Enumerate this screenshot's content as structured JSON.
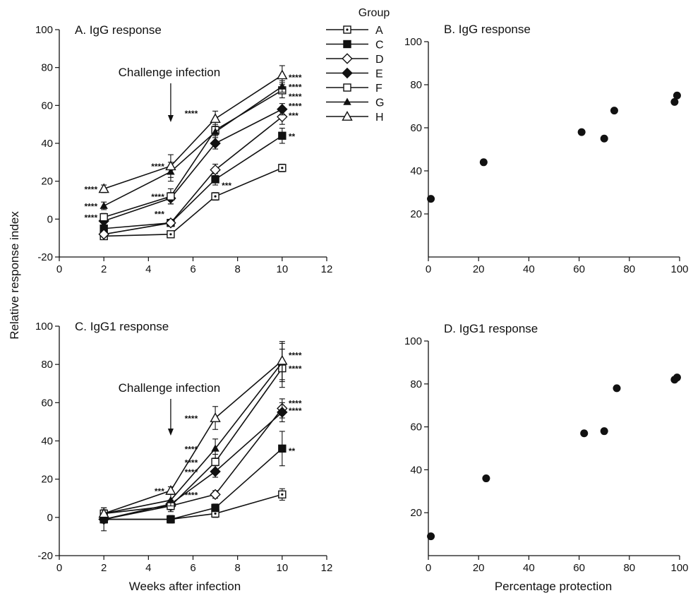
{
  "figure": {
    "y_axis_label": "Relative response index",
    "x_axis_label_left": "Weeks after infection",
    "x_axis_label_right": "Percentage protection",
    "legend_title": "Group"
  },
  "chart_data": [
    {
      "id": "A",
      "type": "line",
      "title": "A. IgG response",
      "xlim": [
        0,
        12
      ],
      "ylim": [
        -20,
        100
      ],
      "xticks": [
        0,
        2,
        4,
        6,
        8,
        10,
        12
      ],
      "yticks": [
        -20,
        0,
        20,
        40,
        60,
        80,
        100
      ],
      "x": [
        2,
        5,
        7,
        10
      ],
      "series": [
        {
          "name": "A",
          "marker": "square-dot",
          "values": [
            -9,
            -8,
            12,
            27
          ],
          "errors": [
            1,
            1,
            2,
            2
          ]
        },
        {
          "name": "C",
          "marker": "filled-square",
          "values": [
            -5,
            -2,
            21,
            44
          ],
          "errors": [
            1,
            1,
            3,
            4
          ]
        },
        {
          "name": "D",
          "marker": "open-diamond",
          "values": [
            -8,
            -2,
            26,
            54
          ],
          "errors": [
            1,
            1,
            3,
            4
          ]
        },
        {
          "name": "E",
          "marker": "filled-diamond",
          "values": [
            -1,
            11,
            40,
            58
          ],
          "errors": [
            1,
            3,
            3,
            3
          ]
        },
        {
          "name": "F",
          "marker": "open-square",
          "values": [
            1,
            12,
            47,
            68
          ],
          "errors": [
            2,
            4,
            3,
            4
          ]
        },
        {
          "name": "G",
          "marker": "filled-triangle",
          "values": [
            7,
            25,
            46,
            70
          ],
          "errors": [
            2,
            5,
            3,
            3
          ]
        },
        {
          "name": "H",
          "marker": "open-triangle",
          "values": [
            16,
            28,
            53,
            76
          ],
          "errors": [
            2,
            6,
            4,
            5
          ]
        }
      ],
      "annotation": {
        "text": "Challenge infection",
        "x": 5
      },
      "significance": [
        {
          "x": 2,
          "y": 16,
          "text": "****",
          "side": "left"
        },
        {
          "x": 2,
          "y": 7,
          "text": "****",
          "side": "left"
        },
        {
          "x": 2,
          "y": 1,
          "text": "****",
          "side": "left"
        },
        {
          "x": 5,
          "y": 28,
          "text": "****",
          "side": "left"
        },
        {
          "x": 5,
          "y": 12,
          "text": "****",
          "side": "left"
        },
        {
          "x": 5,
          "y": 3,
          "text": "***",
          "side": "left"
        },
        {
          "x": 6.5,
          "y": 56,
          "text": "****",
          "side": "left"
        },
        {
          "x": 7,
          "y": 18,
          "text": "***",
          "side": "right"
        },
        {
          "x": 10,
          "y": 75,
          "text": "****",
          "side": "right"
        },
        {
          "x": 10,
          "y": 70,
          "text": "****",
          "side": "right"
        },
        {
          "x": 10,
          "y": 65,
          "text": "****",
          "side": "right"
        },
        {
          "x": 10,
          "y": 60,
          "text": "****",
          "side": "right"
        },
        {
          "x": 10,
          "y": 55,
          "text": "***",
          "side": "right"
        },
        {
          "x": 10,
          "y": 44,
          "text": "**",
          "side": "right"
        }
      ]
    },
    {
      "id": "B",
      "type": "scatter",
      "title": "B. IgG response",
      "xlim": [
        0,
        100
      ],
      "ylim": [
        0,
        100
      ],
      "xticks": [
        0,
        20,
        40,
        60,
        80,
        100
      ],
      "yticks": [
        20,
        40,
        60,
        80,
        100
      ],
      "x": [
        1,
        22,
        61,
        70,
        74,
        98,
        99
      ],
      "y": [
        27,
        44,
        58,
        55,
        68,
        72,
        75
      ]
    },
    {
      "id": "C",
      "type": "line",
      "title": "C. IgG1 response",
      "xlim": [
        0,
        12
      ],
      "ylim": [
        -20,
        100
      ],
      "xticks": [
        0,
        2,
        4,
        6,
        8,
        10,
        12
      ],
      "yticks": [
        -20,
        0,
        20,
        40,
        60,
        80,
        100
      ],
      "x": [
        2,
        5,
        7,
        10
      ],
      "series": [
        {
          "name": "A",
          "marker": "square-dot",
          "values": [
            -1,
            -1,
            2,
            12
          ],
          "errors": [
            2,
            2,
            2,
            3
          ]
        },
        {
          "name": "C",
          "marker": "filled-square",
          "values": [
            -1,
            -1,
            5,
            36
          ],
          "errors": [
            6,
            2,
            2,
            9
          ]
        },
        {
          "name": "D",
          "marker": "open-diamond",
          "values": [
            -1,
            6,
            12,
            57
          ],
          "errors": [
            2,
            2,
            2,
            5
          ]
        },
        {
          "name": "E",
          "marker": "filled-diamond",
          "values": [
            -1,
            7,
            24,
            55
          ],
          "errors": [
            2,
            2,
            3,
            5
          ]
        },
        {
          "name": "F",
          "marker": "open-square",
          "values": [
            2,
            6,
            29,
            78
          ],
          "errors": [
            2,
            3,
            4,
            10
          ]
        },
        {
          "name": "G",
          "marker": "filled-triangle",
          "values": [
            2,
            9,
            36,
            81
          ],
          "errors": [
            2,
            3,
            5,
            10
          ]
        },
        {
          "name": "H",
          "marker": "open-triangle",
          "values": [
            2,
            14,
            52,
            82
          ],
          "errors": [
            3,
            2,
            6,
            10
          ]
        }
      ],
      "annotation": {
        "text": "Challenge infection",
        "x": 5
      },
      "significance": [
        {
          "x": 5,
          "y": 14,
          "text": "***",
          "side": "left"
        },
        {
          "x": 6.5,
          "y": 52,
          "text": "****",
          "side": "left"
        },
        {
          "x": 6.5,
          "y": 36,
          "text": "****",
          "side": "left"
        },
        {
          "x": 6.5,
          "y": 29,
          "text": "****",
          "side": "left"
        },
        {
          "x": 6.5,
          "y": 24,
          "text": "****",
          "side": "left"
        },
        {
          "x": 6.5,
          "y": 12,
          "text": "****",
          "side": "left"
        },
        {
          "x": 10,
          "y": 85,
          "text": "****",
          "side": "right"
        },
        {
          "x": 10,
          "y": 78,
          "text": "****",
          "side": "right"
        },
        {
          "x": 10,
          "y": 60,
          "text": "****",
          "side": "right"
        },
        {
          "x": 10,
          "y": 56,
          "text": "****",
          "side": "right"
        },
        {
          "x": 10,
          "y": 35,
          "text": "**",
          "side": "right"
        }
      ]
    },
    {
      "id": "D",
      "type": "scatter",
      "title": "D. IgG1 response",
      "xlim": [
        0,
        100
      ],
      "ylim": [
        0,
        100
      ],
      "xticks": [
        0,
        20,
        40,
        60,
        80,
        100
      ],
      "yticks": [
        20,
        40,
        60,
        80,
        100
      ],
      "x": [
        1,
        23,
        62,
        70,
        75,
        98,
        99
      ],
      "y": [
        9,
        36,
        57,
        58,
        78,
        82,
        83
      ]
    }
  ]
}
